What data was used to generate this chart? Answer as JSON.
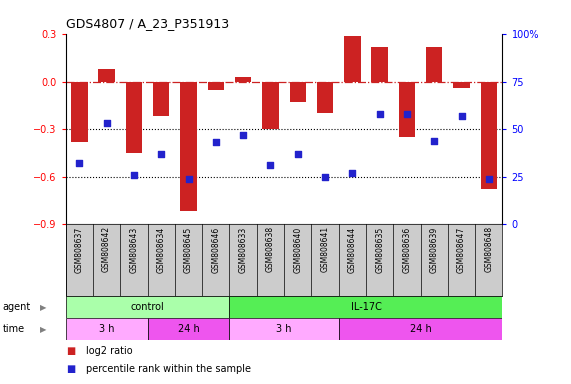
{
  "title": "GDS4807 / A_23_P351913",
  "samples": [
    "GSM808637",
    "GSM808642",
    "GSM808643",
    "GSM808634",
    "GSM808645",
    "GSM808646",
    "GSM808633",
    "GSM808638",
    "GSM808640",
    "GSM808641",
    "GSM808644",
    "GSM808635",
    "GSM808636",
    "GSM808639",
    "GSM808647",
    "GSM808648"
  ],
  "log2_ratio": [
    -0.38,
    0.08,
    -0.45,
    -0.22,
    -0.82,
    -0.05,
    0.03,
    -0.3,
    -0.13,
    -0.2,
    0.29,
    0.22,
    -0.35,
    0.22,
    -0.04,
    -0.68
  ],
  "percentile": [
    32,
    53,
    26,
    37,
    24,
    43,
    47,
    31,
    37,
    25,
    27,
    58,
    58,
    44,
    57,
    24
  ],
  "ylim_left": [
    -0.9,
    0.3
  ],
  "ylim_right": [
    0,
    100
  ],
  "yticks_left": [
    -0.9,
    -0.6,
    -0.3,
    0.0,
    0.3
  ],
  "yticks_right": [
    0,
    25,
    50,
    75,
    100
  ],
  "bar_color": "#cc2222",
  "dot_color": "#2222cc",
  "agent_groups": [
    {
      "label": "control",
      "start": 0,
      "end": 6,
      "color": "#aaffaa"
    },
    {
      "label": "IL-17C",
      "start": 6,
      "end": 16,
      "color": "#55ee55"
    }
  ],
  "time_groups": [
    {
      "label": "3 h",
      "start": 0,
      "end": 3,
      "color": "#ffaaff"
    },
    {
      "label": "24 h",
      "start": 3,
      "end": 6,
      "color": "#ee55ee"
    },
    {
      "label": "3 h",
      "start": 6,
      "end": 10,
      "color": "#ffaaff"
    },
    {
      "label": "24 h",
      "start": 10,
      "end": 16,
      "color": "#ee55ee"
    }
  ],
  "bg_color": "#ffffff",
  "hline_color": "#cc2222",
  "dotted_color": "#000000",
  "label_bg": "#cccccc"
}
